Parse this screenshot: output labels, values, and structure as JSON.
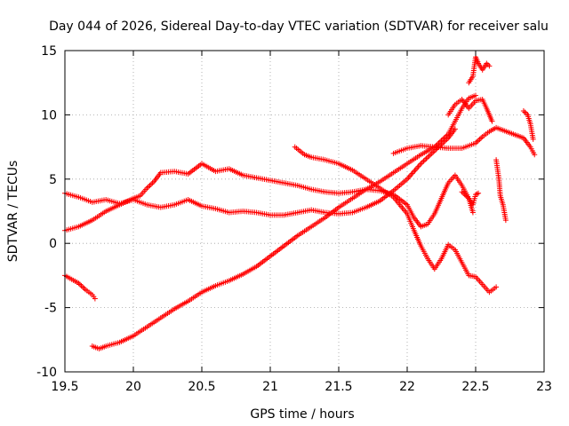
{
  "chart_data": {
    "type": "scatter",
    "title": "Day 044 of 2026, Sidereal Day-to-day VTEC variation (SDTVAR) for receiver salu",
    "xlabel": "GPS time / hours",
    "ylabel": "SDTVAR / TECUs",
    "xlim": [
      19.5,
      23
    ],
    "ylim": [
      -10,
      15
    ],
    "xticks": [
      19.5,
      20,
      20.5,
      21,
      21.5,
      22,
      22.5,
      23
    ],
    "yticks": [
      -10,
      -5,
      0,
      5,
      10,
      15
    ],
    "xtick_labels": [
      "19.5",
      "20",
      "20.5",
      "21",
      "21.5",
      "22",
      "22.5",
      "23"
    ],
    "ytick_labels": [
      "-10",
      "-5",
      "0",
      "5",
      "10",
      "15"
    ],
    "grid": true,
    "legend": "none",
    "marker": "+",
    "color": "#ff0000",
    "series": [
      {
        "name": "s1",
        "points": [
          [
            19.5,
            3.9
          ],
          [
            19.6,
            3.6
          ],
          [
            19.7,
            3.2
          ],
          [
            19.8,
            3.4
          ],
          [
            19.9,
            3.1
          ],
          [
            20.0,
            3.4
          ],
          [
            20.1,
            3.0
          ],
          [
            20.2,
            2.8
          ],
          [
            20.3,
            3.0
          ],
          [
            20.4,
            3.4
          ],
          [
            20.5,
            2.9
          ],
          [
            20.6,
            2.7
          ],
          [
            20.7,
            2.4
          ],
          [
            20.8,
            2.5
          ],
          [
            20.9,
            2.4
          ],
          [
            21.0,
            2.2
          ],
          [
            21.1,
            2.2
          ],
          [
            21.2,
            2.4
          ],
          [
            21.3,
            2.6
          ],
          [
            21.4,
            2.4
          ],
          [
            21.5,
            2.3
          ],
          [
            21.6,
            2.4
          ],
          [
            21.7,
            2.8
          ],
          [
            21.8,
            3.3
          ],
          [
            21.9,
            4.1
          ],
          [
            22.0,
            5.0
          ],
          [
            22.1,
            6.2
          ],
          [
            22.2,
            7.2
          ],
          [
            22.3,
            8.2
          ],
          [
            22.35,
            8.9
          ]
        ]
      },
      {
        "name": "s2",
        "points": [
          [
            19.5,
            1.0
          ],
          [
            19.6,
            1.3
          ],
          [
            19.7,
            1.8
          ],
          [
            19.8,
            2.5
          ],
          [
            19.9,
            3.0
          ],
          [
            20.0,
            3.5
          ],
          [
            20.05,
            3.7
          ],
          [
            20.1,
            4.3
          ],
          [
            20.15,
            4.8
          ],
          [
            20.2,
            5.5
          ],
          [
            20.3,
            5.6
          ],
          [
            20.4,
            5.4
          ],
          [
            20.5,
            6.2
          ],
          [
            20.55,
            5.9
          ],
          [
            20.6,
            5.6
          ],
          [
            20.7,
            5.8
          ],
          [
            20.8,
            5.3
          ],
          [
            20.9,
            5.1
          ],
          [
            21.0,
            4.9
          ],
          [
            21.1,
            4.7
          ],
          [
            21.2,
            4.5
          ],
          [
            21.3,
            4.2
          ],
          [
            21.4,
            4.0
          ],
          [
            21.5,
            3.9
          ],
          [
            21.6,
            4.0
          ],
          [
            21.7,
            4.2
          ],
          [
            21.8,
            4.1
          ],
          [
            21.9,
            3.8
          ],
          [
            22.0,
            3.0
          ],
          [
            22.05,
            2.0
          ],
          [
            22.1,
            1.3
          ],
          [
            22.15,
            1.5
          ],
          [
            22.2,
            2.3
          ],
          [
            22.25,
            3.5
          ],
          [
            22.3,
            4.7
          ],
          [
            22.35,
            5.3
          ],
          [
            22.4,
            4.5
          ],
          [
            22.45,
            3.5
          ],
          [
            22.48,
            2.4
          ]
        ]
      },
      {
        "name": "s3",
        "points": [
          [
            19.5,
            -2.5
          ],
          [
            19.55,
            -2.8
          ],
          [
            19.6,
            -3.1
          ],
          [
            19.65,
            -3.6
          ],
          [
            19.7,
            -4.0
          ],
          [
            19.72,
            -4.3
          ]
        ]
      },
      {
        "name": "s4",
        "points": [
          [
            19.7,
            -8.0
          ],
          [
            19.75,
            -8.2
          ],
          [
            19.8,
            -8.0
          ],
          [
            19.9,
            -7.7
          ],
          [
            20.0,
            -7.2
          ],
          [
            20.1,
            -6.5
          ],
          [
            20.2,
            -5.8
          ],
          [
            20.3,
            -5.1
          ],
          [
            20.4,
            -4.5
          ],
          [
            20.5,
            -3.8
          ],
          [
            20.6,
            -3.3
          ],
          [
            20.7,
            -2.9
          ],
          [
            20.8,
            -2.4
          ],
          [
            20.9,
            -1.8
          ],
          [
            21.0,
            -1.0
          ],
          [
            21.1,
            -0.2
          ],
          [
            21.2,
            0.6
          ],
          [
            21.3,
            1.3
          ],
          [
            21.4,
            2.0
          ],
          [
            21.5,
            2.8
          ],
          [
            21.6,
            3.5
          ],
          [
            21.7,
            4.2
          ],
          [
            21.8,
            4.8
          ],
          [
            21.9,
            5.5
          ],
          [
            22.0,
            6.2
          ],
          [
            22.1,
            6.9
          ],
          [
            22.2,
            7.5
          ],
          [
            22.3,
            8.5
          ],
          [
            22.35,
            9.5
          ],
          [
            22.4,
            10.5
          ],
          [
            22.45,
            11.3
          ],
          [
            22.5,
            11.5
          ]
        ]
      },
      {
        "name": "s5",
        "points": [
          [
            21.18,
            7.5
          ],
          [
            21.25,
            6.9
          ],
          [
            21.3,
            6.7
          ],
          [
            21.4,
            6.5
          ],
          [
            21.5,
            6.2
          ],
          [
            21.6,
            5.7
          ],
          [
            21.7,
            5.0
          ],
          [
            21.8,
            4.3
          ],
          [
            21.9,
            3.6
          ],
          [
            22.0,
            2.3
          ],
          [
            22.05,
            1.0
          ],
          [
            22.1,
            -0.2
          ],
          [
            22.15,
            -1.2
          ],
          [
            22.2,
            -2.0
          ],
          [
            22.25,
            -1.2
          ],
          [
            22.3,
            -0.1
          ],
          [
            22.35,
            -0.5
          ],
          [
            22.4,
            -1.5
          ],
          [
            22.45,
            -2.5
          ],
          [
            22.5,
            -2.6
          ],
          [
            22.55,
            -3.2
          ],
          [
            22.6,
            -3.8
          ],
          [
            22.65,
            -3.4
          ]
        ]
      },
      {
        "name": "s6",
        "points": [
          [
            21.9,
            7.0
          ],
          [
            22.0,
            7.4
          ],
          [
            22.1,
            7.6
          ],
          [
            22.2,
            7.5
          ],
          [
            22.3,
            7.4
          ],
          [
            22.4,
            7.4
          ],
          [
            22.5,
            7.8
          ],
          [
            22.55,
            8.3
          ],
          [
            22.6,
            8.7
          ],
          [
            22.65,
            9.0
          ],
          [
            22.7,
            8.8
          ],
          [
            22.75,
            8.6
          ],
          [
            22.8,
            8.4
          ],
          [
            22.85,
            8.2
          ],
          [
            22.9,
            7.5
          ],
          [
            22.93,
            6.9
          ]
        ]
      },
      {
        "name": "s7",
        "points": [
          [
            22.3,
            10.0
          ],
          [
            22.35,
            10.8
          ],
          [
            22.4,
            11.2
          ],
          [
            22.45,
            10.5
          ],
          [
            22.5,
            11.1
          ],
          [
            22.55,
            11.2
          ],
          [
            22.58,
            10.5
          ],
          [
            22.6,
            10.0
          ],
          [
            22.62,
            9.5
          ]
        ]
      },
      {
        "name": "s8",
        "points": [
          [
            22.45,
            12.5
          ],
          [
            22.48,
            13.0
          ],
          [
            22.5,
            14.5
          ],
          [
            22.52,
            14.0
          ],
          [
            22.55,
            13.5
          ],
          [
            22.58,
            14.0
          ],
          [
            22.6,
            13.8
          ]
        ]
      },
      {
        "name": "s9",
        "points": [
          [
            22.65,
            6.5
          ],
          [
            22.67,
            5.0
          ],
          [
            22.68,
            3.7
          ],
          [
            22.7,
            3.0
          ],
          [
            22.72,
            1.8
          ]
        ]
      },
      {
        "name": "s10",
        "points": [
          [
            22.85,
            10.3
          ],
          [
            22.88,
            10.0
          ],
          [
            22.9,
            9.3
          ],
          [
            22.92,
            8.1
          ]
        ]
      },
      {
        "name": "s11",
        "points": [
          [
            22.4,
            4.0
          ],
          [
            22.45,
            3.5
          ],
          [
            22.48,
            3.0
          ],
          [
            22.5,
            3.8
          ],
          [
            22.52,
            3.9
          ]
        ]
      }
    ]
  }
}
